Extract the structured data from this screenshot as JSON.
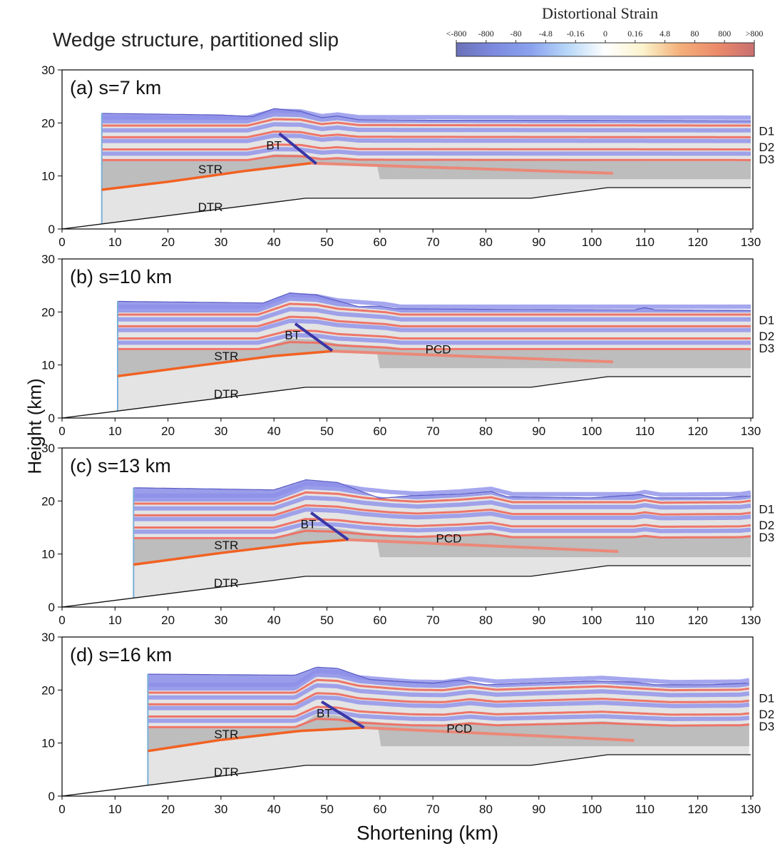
{
  "figure": {
    "title": "Wedge structure, partitioned slip",
    "xlabel": "Shortening (km)",
    "ylabel": "Height (km)"
  },
  "colorbar": {
    "title": "Distortional Strain",
    "ticks": [
      "<-800",
      "-800",
      "-80",
      "-4.8",
      "-0.16",
      "0",
      "0.16",
      "4.8",
      "80",
      "800",
      ">800"
    ],
    "colors": [
      "#6a72b8",
      "#7c8ae0",
      "#8aa2ee",
      "#b8d8f8",
      "#ffffff",
      "#fbf3cc",
      "#f4b07a",
      "#ec8a6a",
      "#c87070"
    ]
  },
  "colors": {
    "frame": "#000000",
    "rock_light": "#e4e4e4",
    "rock_dark": "#bdbdbd",
    "blue_layer": "#8d90ea",
    "red_layer": "#ee6f62",
    "fault_orange": "#f26122",
    "detachment_red": "#f08270",
    "thrust_dark": "#3a36a6"
  },
  "chart_data": [
    {
      "type": "area",
      "panel_label": "(a) s=7 km",
      "s_km": 7,
      "xlim": [
        0,
        130
      ],
      "ylim": [
        0,
        30
      ],
      "xticks": [
        0,
        10,
        20,
        30,
        40,
        50,
        60,
        70,
        80,
        90,
        100,
        110,
        120,
        130
      ],
      "yticks": [
        0,
        10,
        20,
        30
      ],
      "backstop_x": 7.5,
      "surface": [
        [
          7.5,
          21.8
        ],
        [
          30,
          21.5
        ],
        [
          36,
          21.2
        ],
        [
          40,
          22.7
        ],
        [
          45,
          22.2
        ],
        [
          49,
          21.0
        ],
        [
          52,
          21.3
        ],
        [
          56,
          20.6
        ],
        [
          70,
          20.5
        ],
        [
          100,
          20.5
        ],
        [
          130,
          20.4
        ]
      ],
      "uplift": [
        [
          7.5,
          0
        ],
        [
          35,
          0
        ],
        [
          40,
          1.3
        ],
        [
          45,
          1.2
        ],
        [
          49,
          0.3
        ],
        [
          52,
          0.6
        ],
        [
          56,
          0.1
        ],
        [
          130,
          0
        ]
      ],
      "str_fault": [
        [
          7.5,
          7.4
        ],
        [
          20,
          8.9
        ],
        [
          35,
          11.0
        ],
        [
          47,
          12.4
        ]
      ],
      "pcd_detachment": [
        [
          47,
          12.4
        ],
        [
          104,
          10.5
        ]
      ],
      "bt_thrust": [
        [
          41,
          18.0
        ],
        [
          48,
          12.3
        ]
      ],
      "dtr_ramp": [
        [
          0,
          0
        ],
        [
          46,
          5.8
        ],
        [
          88.5,
          5.8
        ],
        [
          103,
          7.8
        ],
        [
          130,
          7.8
        ]
      ],
      "labels": [
        {
          "text": "BT",
          "x": 40,
          "y": 15.8
        },
        {
          "text": "STR",
          "x": 28,
          "y": 11.3
        },
        {
          "text": "DTR",
          "x": 28,
          "y": 4.2
        },
        {
          "text": "D1",
          "x": 133,
          "y": 18.5
        },
        {
          "text": "D2",
          "x": 133,
          "y": 15.5
        },
        {
          "text": "D3",
          "x": 133,
          "y": 13.2
        }
      ]
    },
    {
      "type": "area",
      "panel_label": "(b) s=10 km",
      "s_km": 10,
      "xlim": [
        0,
        130
      ],
      "ylim": [
        0,
        30
      ],
      "xticks": [
        0,
        10,
        20,
        30,
        40,
        50,
        60,
        70,
        80,
        90,
        100,
        110,
        120,
        130
      ],
      "yticks": [
        0,
        10,
        20,
        30
      ],
      "backstop_x": 10.5,
      "surface": [
        [
          10.5,
          22.0
        ],
        [
          38,
          21.7
        ],
        [
          43,
          23.6
        ],
        [
          48,
          23.2
        ],
        [
          56,
          21.0
        ],
        [
          60,
          21.1
        ],
        [
          63,
          20.6
        ],
        [
          80,
          20.5
        ],
        [
          108,
          20.4
        ],
        [
          110,
          20.8
        ],
        [
          112,
          20.4
        ],
        [
          130,
          20.3
        ]
      ],
      "uplift": [
        [
          10.5,
          0
        ],
        [
          37,
          0
        ],
        [
          43,
          2.2
        ],
        [
          48,
          2.0
        ],
        [
          52,
          1.2
        ],
        [
          57,
          0.8
        ],
        [
          61,
          0.5
        ],
        [
          64,
          0
        ],
        [
          130,
          0
        ]
      ],
      "str_fault": [
        [
          10.5,
          7.9
        ],
        [
          25,
          9.8
        ],
        [
          40,
          11.7
        ],
        [
          51,
          12.6
        ]
      ],
      "pcd_detachment": [
        [
          51,
          12.6
        ],
        [
          104,
          10.6
        ]
      ],
      "bt_thrust": [
        [
          44,
          17.8
        ],
        [
          51,
          12.7
        ]
      ],
      "dtr_ramp": [
        [
          0,
          0
        ],
        [
          46,
          5.8
        ],
        [
          88.5,
          5.8
        ],
        [
          103,
          7.8
        ],
        [
          130,
          7.8
        ]
      ],
      "labels": [
        {
          "text": "BT",
          "x": 43.5,
          "y": 15.7
        },
        {
          "text": "STR",
          "x": 31,
          "y": 11.7
        },
        {
          "text": "PCD",
          "x": 71,
          "y": 13.0
        },
        {
          "text": "DTR",
          "x": 31,
          "y": 4.6
        },
        {
          "text": "D1",
          "x": 133,
          "y": 18.5
        },
        {
          "text": "D2",
          "x": 133,
          "y": 15.5
        },
        {
          "text": "D3",
          "x": 133,
          "y": 13.2
        }
      ]
    },
    {
      "type": "area",
      "panel_label": "(c) s=13 km",
      "s_km": 13,
      "xlim": [
        0,
        130
      ],
      "ylim": [
        0,
        30
      ],
      "xticks": [
        0,
        10,
        20,
        30,
        40,
        50,
        60,
        70,
        80,
        90,
        100,
        110,
        120,
        130
      ],
      "yticks": [
        0,
        10,
        20,
        30
      ],
      "backstop_x": 13.5,
      "surface": [
        [
          13.5,
          22.5
        ],
        [
          40,
          22.1
        ],
        [
          46,
          24.0
        ],
        [
          52,
          23.5
        ],
        [
          60,
          20.5
        ],
        [
          66,
          21.0
        ],
        [
          75,
          21.3
        ],
        [
          81,
          21.8
        ],
        [
          84,
          20.8
        ],
        [
          100,
          20.6
        ],
        [
          109,
          21.2
        ],
        [
          112,
          20.6
        ],
        [
          125,
          20.6
        ],
        [
          130,
          21.0
        ]
      ],
      "uplift": [
        [
          13.5,
          0
        ],
        [
          40,
          0
        ],
        [
          46,
          2.3
        ],
        [
          52,
          2.0
        ],
        [
          57,
          1.2
        ],
        [
          62,
          0.7
        ],
        [
          67,
          0.4
        ],
        [
          75,
          0.8
        ],
        [
          81,
          1.3
        ],
        [
          85,
          0.3
        ],
        [
          108,
          0.3
        ],
        [
          110,
          0.7
        ],
        [
          113,
          0.2
        ],
        [
          128,
          0.3
        ],
        [
          130,
          0.6
        ]
      ],
      "str_fault": [
        [
          13.5,
          8.0
        ],
        [
          30,
          10.2
        ],
        [
          45,
          12.0
        ],
        [
          54,
          12.7
        ]
      ],
      "pcd_detachment": [
        [
          54,
          12.7
        ],
        [
          105,
          10.5
        ]
      ],
      "bt_thrust": [
        [
          47,
          17.8
        ],
        [
          54,
          12.7
        ]
      ],
      "dtr_ramp": [
        [
          0,
          0
        ],
        [
          46,
          5.8
        ],
        [
          88.5,
          5.8
        ],
        [
          103,
          7.8
        ],
        [
          130,
          7.8
        ]
      ],
      "labels": [
        {
          "text": "BT",
          "x": 46.5,
          "y": 15.7
        },
        {
          "text": "STR",
          "x": 31,
          "y": 11.7
        },
        {
          "text": "PCD",
          "x": 73,
          "y": 13.0
        },
        {
          "text": "DTR",
          "x": 31,
          "y": 4.6
        },
        {
          "text": "D1",
          "x": 133,
          "y": 18.5
        },
        {
          "text": "D2",
          "x": 133,
          "y": 15.5
        },
        {
          "text": "D3",
          "x": 133,
          "y": 13.2
        }
      ]
    },
    {
      "type": "area",
      "panel_label": "(d) s=16 km",
      "s_km": 16,
      "xlim": [
        0,
        130
      ],
      "ylim": [
        0,
        30
      ],
      "xticks": [
        0,
        10,
        20,
        30,
        40,
        50,
        60,
        70,
        80,
        90,
        100,
        110,
        120,
        130
      ],
      "yticks": [
        0,
        10,
        20,
        30
      ],
      "backstop_x": 16.2,
      "surface": [
        [
          16.2,
          23.0
        ],
        [
          44,
          22.8
        ],
        [
          48,
          24.3
        ],
        [
          52,
          24.1
        ],
        [
          58,
          22.0
        ],
        [
          64,
          21.6
        ],
        [
          70,
          21.3
        ],
        [
          75,
          21.9
        ],
        [
          80,
          21.0
        ],
        [
          88,
          21.3
        ],
        [
          100,
          21.7
        ],
        [
          108,
          21.5
        ],
        [
          112,
          21.0
        ],
        [
          122,
          21.0
        ],
        [
          130,
          21.3
        ]
      ],
      "uplift": [
        [
          16.2,
          0
        ],
        [
          44,
          0
        ],
        [
          48,
          2.6
        ],
        [
          52,
          2.4
        ],
        [
          56,
          1.4
        ],
        [
          62,
          0.9
        ],
        [
          66,
          0.6
        ],
        [
          72,
          0.5
        ],
        [
          77,
          1.2
        ],
        [
          82,
          0.6
        ],
        [
          90,
          0.9
        ],
        [
          102,
          1.3
        ],
        [
          110,
          0.8
        ],
        [
          115,
          0.5
        ],
        [
          128,
          0.6
        ],
        [
          130,
          0.9
        ]
      ],
      "str_fault": [
        [
          16.2,
          8.5
        ],
        [
          30,
          10.6
        ],
        [
          45,
          12.3
        ],
        [
          57,
          12.9
        ]
      ],
      "pcd_detachment": [
        [
          57,
          12.9
        ],
        [
          108,
          10.5
        ]
      ],
      "bt_thrust": [
        [
          49,
          17.8
        ],
        [
          57,
          12.9
        ]
      ],
      "dtr_ramp": [
        [
          0,
          0
        ],
        [
          46,
          5.8
        ],
        [
          88.5,
          5.8
        ],
        [
          103,
          7.8
        ],
        [
          130,
          7.8
        ]
      ],
      "labels": [
        {
          "text": "BT",
          "x": 49.5,
          "y": 15.7
        },
        {
          "text": "STR",
          "x": 31,
          "y": 11.7
        },
        {
          "text": "PCD",
          "x": 75,
          "y": 12.8
        },
        {
          "text": "DTR",
          "x": 31,
          "y": 4.6
        },
        {
          "text": "D1",
          "x": 133,
          "y": 18.5
        },
        {
          "text": "D2",
          "x": 133,
          "y": 15.5
        },
        {
          "text": "D3",
          "x": 133,
          "y": 13.2
        }
      ]
    }
  ]
}
